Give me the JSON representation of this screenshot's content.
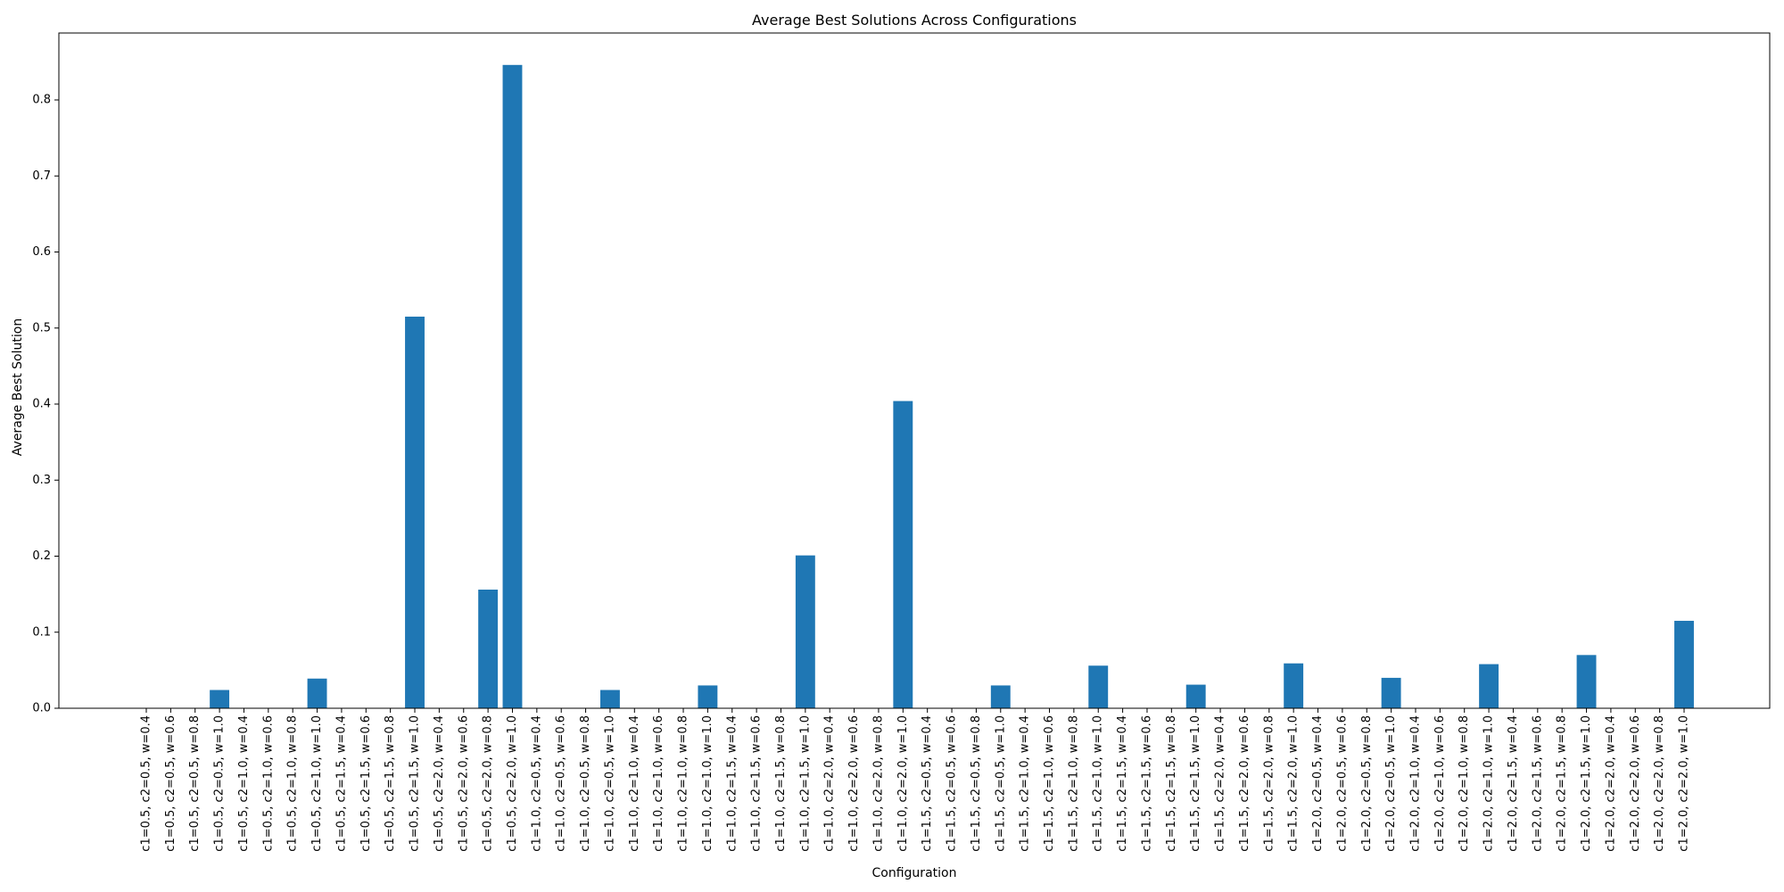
{
  "chart_data": {
    "type": "bar",
    "title": "Average Best Solutions Across Configurations",
    "xlabel": "Configuration",
    "ylabel": "Average Best Solution",
    "ylim": [
      0,
      0.888
    ],
    "yticks": [
      0.0,
      0.1,
      0.2,
      0.3,
      0.4,
      0.5,
      0.6,
      0.7,
      0.8
    ],
    "ytick_labels": [
      "0.0",
      "0.1",
      "0.2",
      "0.3",
      "0.4",
      "0.5",
      "0.6",
      "0.7",
      "0.8"
    ],
    "grid": false,
    "bar_color": "#1f77b4",
    "categories": [
      "c1=0.5, c2=0.5, w=0.4",
      "c1=0.5, c2=0.5, w=0.6",
      "c1=0.5, c2=0.5, w=0.8",
      "c1=0.5, c2=0.5, w=1.0",
      "c1=0.5, c2=1.0, w=0.4",
      "c1=0.5, c2=1.0, w=0.6",
      "c1=0.5, c2=1.0, w=0.8",
      "c1=0.5, c2=1.0, w=1.0",
      "c1=0.5, c2=1.5, w=0.4",
      "c1=0.5, c2=1.5, w=0.6",
      "c1=0.5, c2=1.5, w=0.8",
      "c1=0.5, c2=1.5, w=1.0",
      "c1=0.5, c2=2.0, w=0.4",
      "c1=0.5, c2=2.0, w=0.6",
      "c1=0.5, c2=2.0, w=0.8",
      "c1=0.5, c2=2.0, w=1.0",
      "c1=1.0, c2=0.5, w=0.4",
      "c1=1.0, c2=0.5, w=0.6",
      "c1=1.0, c2=0.5, w=0.8",
      "c1=1.0, c2=0.5, w=1.0",
      "c1=1.0, c2=1.0, w=0.4",
      "c1=1.0, c2=1.0, w=0.6",
      "c1=1.0, c2=1.0, w=0.8",
      "c1=1.0, c2=1.0, w=1.0",
      "c1=1.0, c2=1.5, w=0.4",
      "c1=1.0, c2=1.5, w=0.6",
      "c1=1.0, c2=1.5, w=0.8",
      "c1=1.0, c2=1.5, w=1.0",
      "c1=1.0, c2=2.0, w=0.4",
      "c1=1.0, c2=2.0, w=0.6",
      "c1=1.0, c2=2.0, w=0.8",
      "c1=1.0, c2=2.0, w=1.0",
      "c1=1.5, c2=0.5, w=0.4",
      "c1=1.5, c2=0.5, w=0.6",
      "c1=1.5, c2=0.5, w=0.8",
      "c1=1.5, c2=0.5, w=1.0",
      "c1=1.5, c2=1.0, w=0.4",
      "c1=1.5, c2=1.0, w=0.6",
      "c1=1.5, c2=1.0, w=0.8",
      "c1=1.5, c2=1.0, w=1.0",
      "c1=1.5, c2=1.5, w=0.4",
      "c1=1.5, c2=1.5, w=0.6",
      "c1=1.5, c2=1.5, w=0.8",
      "c1=1.5, c2=1.5, w=1.0",
      "c1=1.5, c2=2.0, w=0.4",
      "c1=1.5, c2=2.0, w=0.6",
      "c1=1.5, c2=2.0, w=0.8",
      "c1=1.5, c2=2.0, w=1.0",
      "c1=2.0, c2=0.5, w=0.4",
      "c1=2.0, c2=0.5, w=0.6",
      "c1=2.0, c2=0.5, w=0.8",
      "c1=2.0, c2=0.5, w=1.0",
      "c1=2.0, c2=1.0, w=0.4",
      "c1=2.0, c2=1.0, w=0.6",
      "c1=2.0, c2=1.0, w=0.8",
      "c1=2.0, c2=1.0, w=1.0",
      "c1=2.0, c2=1.5, w=0.4",
      "c1=2.0, c2=1.5, w=0.6",
      "c1=2.0, c2=1.5, w=0.8",
      "c1=2.0, c2=1.5, w=1.0",
      "c1=2.0, c2=2.0, w=0.4",
      "c1=2.0, c2=2.0, w=0.6",
      "c1=2.0, c2=2.0, w=0.8",
      "c1=2.0, c2=2.0, w=1.0"
    ],
    "values": [
      0,
      0,
      0,
      0.024,
      0,
      0,
      0,
      0.039,
      0,
      0,
      0,
      0.515,
      0,
      0,
      0.156,
      0.846,
      0,
      0,
      0,
      0.024,
      0,
      0,
      0,
      0.03,
      0,
      0,
      0,
      0.201,
      0,
      0,
      0,
      0.404,
      0,
      0,
      0,
      0.03,
      0,
      0,
      0,
      0.056,
      0,
      0,
      0,
      0.031,
      0,
      0,
      0,
      0.059,
      0,
      0,
      0,
      0.04,
      0,
      0,
      0,
      0.058,
      0,
      0,
      0,
      0.07,
      0,
      0,
      0,
      0.115
    ]
  }
}
